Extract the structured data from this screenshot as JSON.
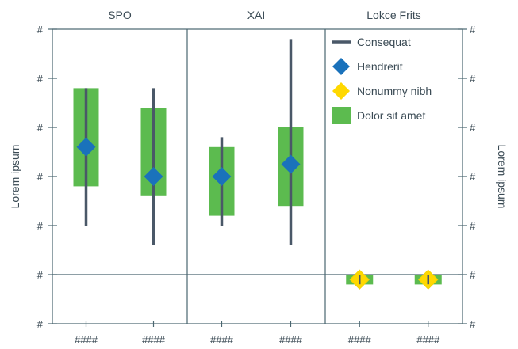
{
  "chart_data": {
    "type": "range-bar",
    "y_axis_label_left": "Lorem ipsum",
    "y_axis_label_right": "Lorem ipsum",
    "y_tick_labels": [
      "#",
      "#",
      "#",
      "#",
      "#",
      "#",
      "#"
    ],
    "y_range": [
      0,
      6
    ],
    "reference_line_y": 1,
    "panels": [
      {
        "title": "SPO",
        "groups": [
          {
            "x_label": "####",
            "range_low": 2,
            "range_high": 4.8,
            "box_low": 2.8,
            "box_high": 4.8,
            "marker": 3.6,
            "marker_type": "Hendrerit"
          },
          {
            "x_label": "####",
            "range_low": 1.6,
            "range_high": 4.8,
            "box_low": 2.6,
            "box_high": 4.4,
            "marker": 3.0,
            "marker_type": "Hendrerit"
          }
        ]
      },
      {
        "title": "XAI",
        "groups": [
          {
            "x_label": "####",
            "range_low": 2,
            "range_high": 3.8,
            "box_low": 2.2,
            "box_high": 3.6,
            "marker": 3.0,
            "marker_type": "Hendrerit"
          },
          {
            "x_label": "####",
            "range_low": 1.6,
            "range_high": 5.8,
            "box_low": 2.4,
            "box_high": 4.0,
            "marker": 3.25,
            "marker_type": "Hendrerit"
          }
        ]
      },
      {
        "title": "Lokce Frits",
        "groups": [
          {
            "x_label": "####",
            "range_low": 0.8,
            "range_high": 1.0,
            "box_low": 0.8,
            "box_high": 1.0,
            "marker": 0.9,
            "marker_type": "Nonummy nibh"
          },
          {
            "x_label": "####",
            "range_low": 0.8,
            "range_high": 1.0,
            "box_low": 0.8,
            "box_high": 1.0,
            "marker": 0.9,
            "marker_type": "Nonummy nibh"
          }
        ]
      }
    ],
    "legend": [
      {
        "label": "Consequat",
        "symbol": "line",
        "color": "#4a5868"
      },
      {
        "label": "Hendrerit",
        "symbol": "diamond",
        "color": "#1a72bb"
      },
      {
        "label": "Nonummy nibh",
        "symbol": "diamond",
        "color": "#ffd800"
      },
      {
        "label": "Dolor sit amet",
        "symbol": "box",
        "color": "#5cbb4f"
      }
    ],
    "legend_position": "top-right",
    "colors": {
      "axis": "#4a6670",
      "range_line": "#4a5868",
      "box": "#5cbb4f",
      "marker_primary": "#1a72bb",
      "marker_secondary": "#ffd800",
      "marker_secondary_stroke": "#f3d400"
    }
  }
}
